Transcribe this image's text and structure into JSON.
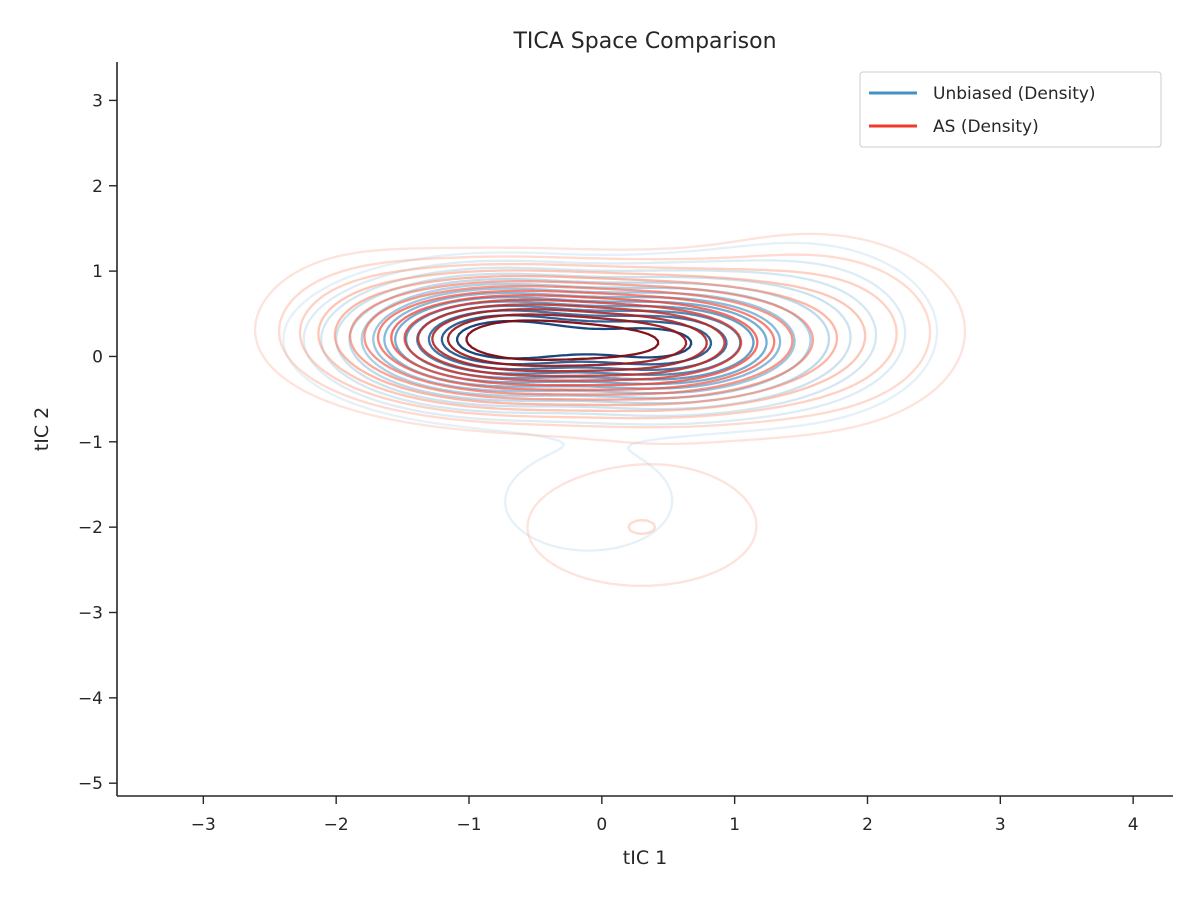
{
  "chart_data": {
    "type": "contour",
    "title": "TICA Space Comparison",
    "xlabel": "tIC 1",
    "ylabel": "tIC 2",
    "xlim": [
      -3.65,
      4.3
    ],
    "ylim": [
      -5.15,
      3.45
    ],
    "xticks": [
      -3,
      -2,
      -1,
      0,
      1,
      2,
      3,
      4
    ],
    "yticks": [
      -5,
      -4,
      -3,
      -2,
      -1,
      0,
      1,
      2,
      3
    ],
    "xtick_labels": [
      "−3",
      "−2",
      "−1",
      "0",
      "1",
      "2",
      "3",
      "4"
    ],
    "ytick_labels": [
      "−5",
      "−4",
      "−3",
      "−2",
      "−1",
      "0",
      "1",
      "2",
      "3"
    ],
    "grid": false,
    "legend_position": "top-right",
    "series": [
      {
        "name": "Unbiased (Density)",
        "legend_color": "#4292c6",
        "cmap": "Blues",
        "modes": [
          {
            "cx": -0.8,
            "cy": 0.2,
            "sx": 0.6,
            "sy": 0.38,
            "w": 1.0
          },
          {
            "cx": 0.5,
            "cy": 0.15,
            "sx": 0.55,
            "sy": 0.38,
            "w": 0.85
          },
          {
            "cx": -0.1,
            "cy": -1.7,
            "sx": 0.6,
            "sy": 0.55,
            "w": 0.05
          },
          {
            "cx": 1.5,
            "cy": 0.3,
            "sx": 0.6,
            "sy": 0.6,
            "w": 0.12
          }
        ]
      },
      {
        "name": "AS (Density)",
        "legend_color": "#ef3b2c",
        "cmap": "Reds",
        "modes": [
          {
            "cx": -0.75,
            "cy": 0.2,
            "sx": 0.65,
            "sy": 0.4,
            "w": 1.0
          },
          {
            "cx": 0.45,
            "cy": 0.15,
            "sx": 0.6,
            "sy": 0.4,
            "w": 0.75
          },
          {
            "cx": 0.3,
            "cy": -2.0,
            "sx": 0.75,
            "sy": 0.6,
            "w": 0.06
          },
          {
            "cx": 1.6,
            "cy": 0.3,
            "sx": 0.65,
            "sy": 0.65,
            "w": 0.14
          },
          {
            "cx": -1.8,
            "cy": 0.5,
            "sx": 0.5,
            "sy": 0.5,
            "w": 0.06
          }
        ]
      }
    ]
  }
}
